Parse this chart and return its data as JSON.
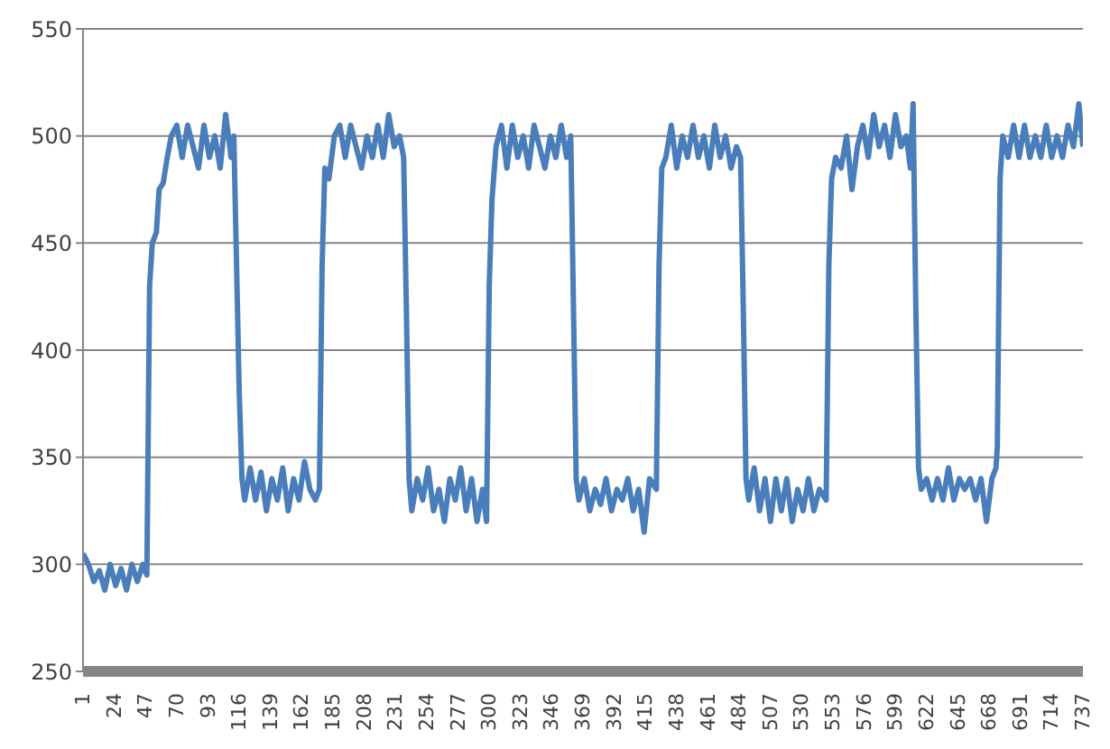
{
  "chart_data": {
    "type": "line",
    "grid": "y",
    "legend": false,
    "marker": "none",
    "line_style": "solid",
    "xlim": [
      1,
      737
    ],
    "xticks": [
      1,
      24,
      47,
      70,
      93,
      116,
      139,
      162,
      185,
      208,
      231,
      254,
      277,
      300,
      323,
      346,
      369,
      392,
      415,
      438,
      461,
      484,
      507,
      530,
      553,
      576,
      599,
      622,
      645,
      668,
      691,
      714,
      737
    ],
    "ylim": [
      250,
      550
    ],
    "yticks": [
      250,
      300,
      350,
      400,
      450,
      500,
      550
    ],
    "series": [
      {
        "color": "#4a7ebb",
        "x": [
          1,
          5,
          9,
          13,
          17,
          21,
          25,
          29,
          33,
          37,
          41,
          45,
          48,
          50,
          52,
          55,
          57,
          60,
          63,
          66,
          70,
          74,
          78,
          82,
          86,
          90,
          94,
          98,
          102,
          106,
          110,
          112,
          114,
          116,
          118,
          120,
          124,
          128,
          132,
          136,
          140,
          144,
          148,
          152,
          156,
          160,
          164,
          168,
          172,
          175,
          177,
          179,
          182,
          186,
          190,
          194,
          198,
          202,
          206,
          210,
          214,
          218,
          222,
          226,
          230,
          234,
          237,
          239,
          241,
          243,
          247,
          251,
          255,
          259,
          263,
          267,
          271,
          275,
          279,
          283,
          287,
          291,
          295,
          298,
          300,
          302,
          305,
          309,
          313,
          317,
          321,
          325,
          329,
          333,
          337,
          341,
          345,
          349,
          353,
          357,
          360,
          362,
          364,
          366,
          370,
          374,
          378,
          382,
          386,
          390,
          394,
          398,
          402,
          406,
          410,
          414,
          418,
          423,
          425,
          427,
          430,
          434,
          438,
          442,
          446,
          450,
          454,
          458,
          462,
          466,
          470,
          474,
          478,
          482,
          485,
          487,
          489,
          491,
          495,
          499,
          503,
          507,
          511,
          515,
          519,
          523,
          527,
          531,
          535,
          539,
          543,
          548,
          550,
          552,
          555,
          559,
          563,
          567,
          571,
          575,
          579,
          583,
          587,
          591,
          595,
          599,
          603,
          607,
          610,
          612,
          614,
          616,
          618,
          622,
          626,
          630,
          634,
          638,
          642,
          646,
          650,
          654,
          658,
          662,
          666,
          670,
          673,
          674,
          676,
          678,
          682,
          686,
          690,
          694,
          698,
          702,
          706,
          710,
          714,
          718,
          722,
          726,
          730,
          734,
          737
        ],
        "values": [
          305,
          300,
          292,
          297,
          288,
          300,
          290,
          298,
          288,
          300,
          292,
          300,
          295,
          430,
          450,
          455,
          475,
          478,
          490,
          500,
          505,
          490,
          505,
          495,
          485,
          505,
          490,
          500,
          485,
          510,
          490,
          500,
          440,
          380,
          340,
          330,
          345,
          330,
          343,
          325,
          340,
          330,
          345,
          325,
          340,
          330,
          348,
          335,
          330,
          335,
          440,
          485,
          480,
          500,
          505,
          490,
          505,
          495,
          485,
          500,
          490,
          505,
          490,
          510,
          495,
          500,
          490,
          420,
          340,
          325,
          340,
          330,
          345,
          325,
          335,
          320,
          340,
          330,
          345,
          325,
          340,
          320,
          335,
          320,
          430,
          470,
          495,
          505,
          485,
          505,
          490,
          500,
          485,
          505,
          495,
          485,
          500,
          490,
          505,
          490,
          500,
          420,
          340,
          330,
          340,
          325,
          335,
          328,
          340,
          325,
          335,
          330,
          340,
          325,
          335,
          315,
          340,
          335,
          440,
          485,
          490,
          505,
          485,
          500,
          490,
          505,
          490,
          500,
          485,
          505,
          490,
          500,
          485,
          495,
          490,
          420,
          340,
          330,
          345,
          325,
          340,
          320,
          340,
          325,
          340,
          320,
          335,
          325,
          340,
          325,
          335,
          330,
          440,
          480,
          490,
          485,
          500,
          475,
          495,
          505,
          490,
          510,
          495,
          505,
          490,
          510,
          495,
          500,
          485,
          515,
          420,
          345,
          335,
          340,
          330,
          340,
          330,
          345,
          330,
          340,
          335,
          340,
          330,
          340,
          320,
          340,
          345,
          355,
          480,
          500,
          490,
          505,
          490,
          505,
          490,
          500,
          490,
          505,
          490,
          500,
          490,
          505,
          495,
          515,
          495
        ]
      }
    ]
  }
}
